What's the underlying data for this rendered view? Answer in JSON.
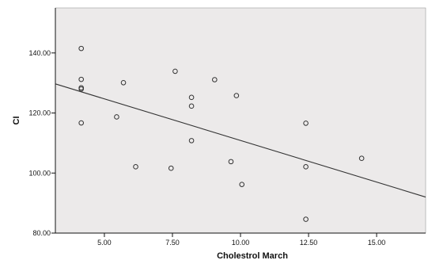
{
  "chart_data": {
    "type": "scatter",
    "title": "",
    "xlabel": "Cholestrol March",
    "ylabel": "CI",
    "xlim": [
      3.2,
      16.8
    ],
    "ylim": [
      80,
      155
    ],
    "x_ticks": [
      5,
      7.5,
      10,
      12.5,
      15
    ],
    "x_tick_labels": [
      "5.00",
      "7.50",
      "10.00",
      "12.50",
      "15.00"
    ],
    "y_ticks": [
      80,
      100,
      120,
      140
    ],
    "y_tick_labels": [
      "80.00",
      "100.00",
      "120.00",
      "140.00"
    ],
    "points": [
      {
        "x": 4.15,
        "y": 141.5
      },
      {
        "x": 4.15,
        "y": 131.2
      },
      {
        "x": 4.15,
        "y": 128.4
      },
      {
        "x": 4.15,
        "y": 128.0
      },
      {
        "x": 4.15,
        "y": 116.7
      },
      {
        "x": 5.45,
        "y": 118.7
      },
      {
        "x": 5.7,
        "y": 130.1
      },
      {
        "x": 6.15,
        "y": 102.1
      },
      {
        "x": 7.45,
        "y": 101.6
      },
      {
        "x": 7.6,
        "y": 133.9
      },
      {
        "x": 8.2,
        "y": 125.2
      },
      {
        "x": 8.2,
        "y": 122.3
      },
      {
        "x": 8.2,
        "y": 110.8
      },
      {
        "x": 9.05,
        "y": 131.1
      },
      {
        "x": 9.65,
        "y": 103.8
      },
      {
        "x": 9.85,
        "y": 125.8
      },
      {
        "x": 10.05,
        "y": 96.2
      },
      {
        "x": 12.4,
        "y": 116.6
      },
      {
        "x": 12.4,
        "y": 102.1
      },
      {
        "x": 12.4,
        "y": 84.6
      },
      {
        "x": 14.45,
        "y": 104.9
      }
    ],
    "fit_line": {
      "x": [
        3.2,
        16.8
      ],
      "y": [
        129.7,
        92.0
      ]
    },
    "grid": false,
    "legend": "none",
    "colors": {
      "plot_background": "#eceaea",
      "point_stroke": "#333333",
      "line": "#333333",
      "axis": "#111111"
    }
  }
}
